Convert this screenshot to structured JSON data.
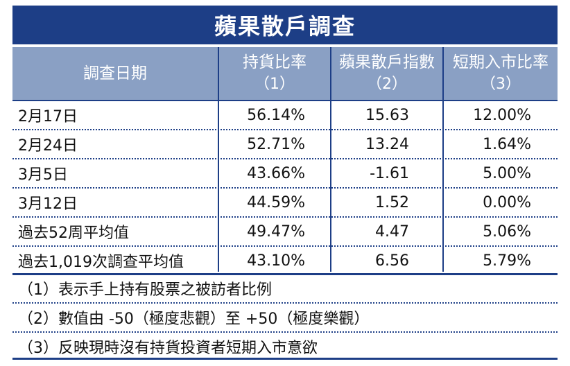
{
  "title": "蘋果散戶調查",
  "header": {
    "date": "調查日期",
    "col1_label": "持貨比率",
    "col1_num": "（1）",
    "col2_label": "蘋果散戶指數",
    "col2_num": "（2）",
    "col3_label": "短期入市比率",
    "col3_num": "（3）"
  },
  "rows": [
    {
      "date": "2月17日",
      "holding": "56.14%",
      "index": "15.63",
      "entry": "12.00%"
    },
    {
      "date": "2月24日",
      "holding": "52.71%",
      "index": "13.24",
      "entry": "1.64%"
    },
    {
      "date": "3月5日",
      "holding": "43.66%",
      "index": "-1.61",
      "entry": "5.00%"
    },
    {
      "date": "3月12日",
      "holding": "44.59%",
      "index": "1.52",
      "entry": "0.00%"
    },
    {
      "date": "過去52周平均值",
      "holding": "49.47%",
      "index": "4.47",
      "entry": "5.06%"
    },
    {
      "date": "過去1,019次調查平均值",
      "holding": "43.10%",
      "index": "6.56",
      "entry": "5.79%"
    }
  ],
  "notes": [
    "（1）表示手上持有股票之被訪者比例",
    "（2）數值由 -50（極度悲觀）至 +50（極度樂觀）",
    "（3）反映現時沒有持貨投資者短期入市意欲"
  ]
}
